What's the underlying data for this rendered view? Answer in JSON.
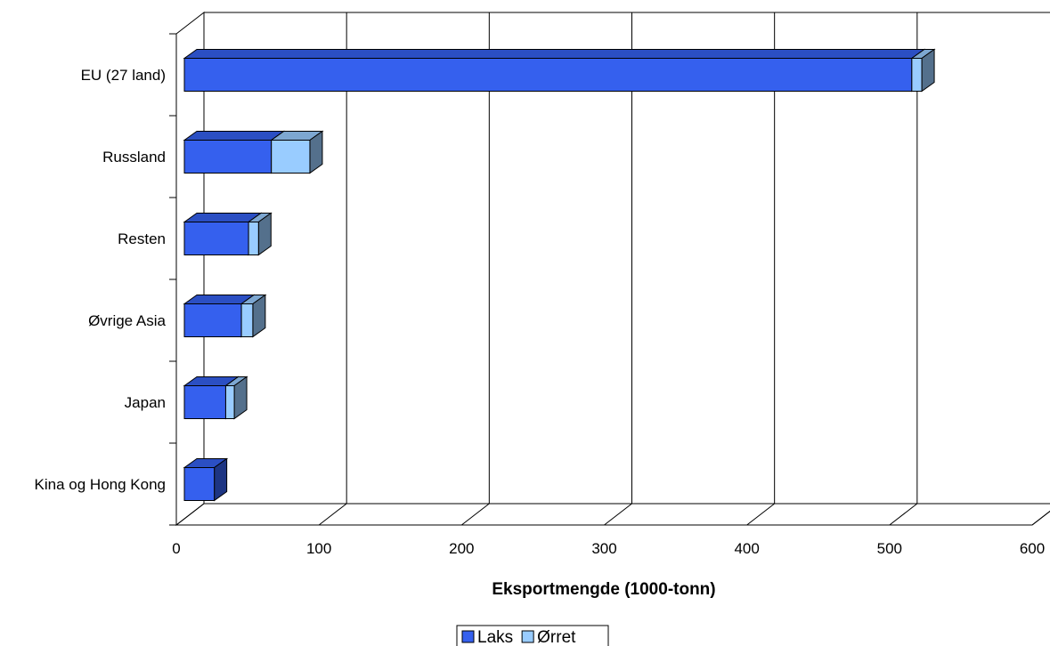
{
  "chart_data": {
    "type": "bar",
    "orientation": "horizontal",
    "stacked": true,
    "three_d": true,
    "categories": [
      "EU (27 land)",
      "Russland",
      "Resten",
      "Øvrige Asia",
      "Japan",
      "Kina og Hong Kong"
    ],
    "series": [
      {
        "name": "Laks",
        "values": [
          510,
          61,
          45,
          40,
          29,
          21
        ],
        "color": "#3560EE"
      },
      {
        "name": "Ørret",
        "values": [
          7,
          27,
          7,
          8,
          6,
          0
        ],
        "color": "#99CCFF"
      }
    ],
    "xlabel": "Eksportmengde (1000-tonn)",
    "ylabel": "",
    "xlim": [
      0,
      600
    ],
    "xticks": [
      0,
      100,
      200,
      300,
      400,
      500,
      600
    ],
    "grid": true,
    "legend_position": "bottom"
  }
}
